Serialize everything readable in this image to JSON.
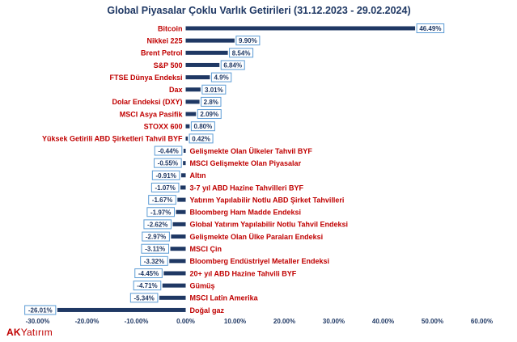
{
  "logo": {
    "part1": "AK",
    "part2": "Yatırım"
  },
  "colors": {
    "bar": "#1f3864",
    "category_label": "#c00000",
    "value_box_border": "#5b9bd5",
    "title": "#1f3864"
  },
  "chart_data": {
    "type": "bar",
    "orientation": "horizontal",
    "title": "Global Piyasalar Çoklu Varlık Getirileri (31.12.2023 - 29.02.2024)",
    "xlabel": "",
    "ylabel": "",
    "xlim": [
      -30,
      60
    ],
    "x_ticks": [
      "-30.00%",
      "-20.00%",
      "-10.00%",
      "0.00%",
      "10.00%",
      "20.00%",
      "30.00%",
      "40.00%",
      "50.00%",
      "60.00%"
    ],
    "grid": false,
    "legend": "none",
    "categories": [
      "Bitcoin",
      "Nikkei 225",
      "Brent Petrol",
      "S&P 500",
      "FTSE Dünya Endeksi",
      "Dax",
      "Dolar Endeksi (DXY)",
      "MSCI Asya Pasifik",
      "STOXX 600",
      "Yüksek Getirili ABD Şirketleri Tahvil BYF",
      "Gelişmekte Olan Ülkeler Tahvil BYF",
      "MSCI Gelişmekte Olan Piyasalar",
      "Altın",
      "3-7 yıl ABD Hazine Tahvilleri BYF",
      "Yatırım Yapılabilir Notlu  ABD Şirket Tahvilleri",
      "Bloomberg Ham Madde Endeksi",
      "Global Yatırım Yapılabilir Notlu Tahvil Endeksi",
      "Gelişmekte Olan Ülke Paraları Endeksi",
      "MSCI Çin",
      "Bloomberg Endüstriyel Metaller Endeksi",
      "20+ yıl ABD Hazine Tahvili BYF",
      "Gümüş",
      "MSCI Latin Amerika",
      "Doğal gaz"
    ],
    "values": [
      46.49,
      9.9,
      8.54,
      6.84,
      4.9,
      3.01,
      2.8,
      2.09,
      0.8,
      0.42,
      -0.44,
      -0.55,
      -0.91,
      -1.07,
      -1.67,
      -1.97,
      -2.62,
      -2.97,
      -3.11,
      -3.32,
      -4.45,
      -4.71,
      -5.34,
      -26.01
    ],
    "value_labels": [
      "46.49%",
      "9.90%",
      "8.54%",
      "6.84%",
      "4.9%",
      "3.01%",
      "2.8%",
      "2.09%",
      "0.80%",
      "0.42%",
      "-0.44%",
      "-0.55%",
      "-0.91%",
      "-1.07%",
      "-1.67%",
      "-1.97%",
      "-2.62%",
      "-2.97%",
      "-3.11%",
      "-3.32%",
      "-4.45%",
      "-4.71%",
      "-5.34%",
      "-26.01%"
    ]
  }
}
